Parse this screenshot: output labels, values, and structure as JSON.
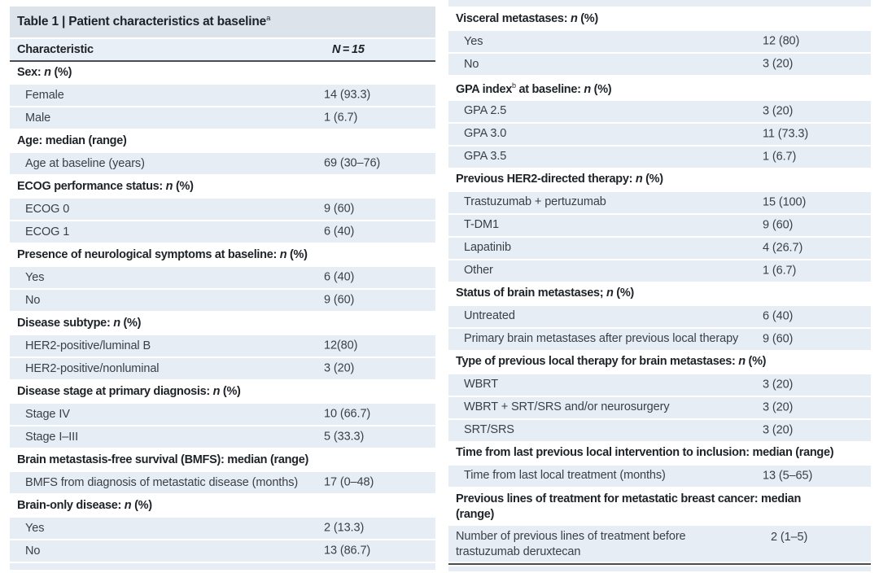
{
  "colors": {
    "title_bg": "#dce3eb",
    "header_bg": "#e9eff6",
    "row_bg": "#e7edf4",
    "rule": "#4a4e53",
    "body_text": "#3a4046",
    "bold_text": "#1f2328",
    "page_bg": "#ffffff"
  },
  "table": {
    "title_html": "Table 1 | Patient characteristics at baseline<sup>a</sup>",
    "header": {
      "characteristic_html": "Characteristic",
      "n_html": "<i>N</i>&#8201;=&#8201;<i>15</i>"
    },
    "left_rows": [
      {
        "type": "section",
        "label_html": "Sex: <i>n</i> (%)"
      },
      {
        "type": "data",
        "label_html": "Female",
        "value": "14 (93.3)",
        "indent": true
      },
      {
        "type": "data",
        "label_html": "Male",
        "value": "1 (6.7)",
        "indent": true
      },
      {
        "type": "section",
        "label_html": "Age: median (range)"
      },
      {
        "type": "data",
        "label_html": "Age at baseline (years)",
        "value": "69 (30–76)",
        "indent": true
      },
      {
        "type": "section",
        "label_html": "ECOG performance status: <i>n</i> (%)"
      },
      {
        "type": "data",
        "label_html": "ECOG 0",
        "value": "9 (60)",
        "indent": true
      },
      {
        "type": "data",
        "label_html": "ECOG 1",
        "value": "6 (40)",
        "indent": true
      },
      {
        "type": "section",
        "label_html": "Presence of neurological symptoms at baseline: <i>n</i> (%)"
      },
      {
        "type": "data",
        "label_html": "Yes",
        "value": "6 (40)",
        "indent": true
      },
      {
        "type": "data",
        "label_html": "No",
        "value": "9 (60)",
        "indent": true
      },
      {
        "type": "section",
        "label_html": "Disease subtype: <i>n</i> (%)"
      },
      {
        "type": "data",
        "label_html": "HER2-positive/luminal B",
        "value": "12(80)",
        "indent": true
      },
      {
        "type": "data",
        "label_html": "HER2-positive/nonluminal",
        "value": "3 (20)",
        "indent": true
      },
      {
        "type": "section",
        "label_html": "Disease stage at primary diagnosis: <i>n</i> (%)"
      },
      {
        "type": "data",
        "label_html": "Stage IV",
        "value": "10 (66.7)",
        "indent": true
      },
      {
        "type": "data",
        "label_html": "Stage I–III",
        "value": "5 (33.3)",
        "indent": true
      },
      {
        "type": "section",
        "label_html": "Brain metastasis-free survival (BMFS): median (range)"
      },
      {
        "type": "data",
        "label_html": "BMFS from diagnosis of metastatic disease (months)",
        "value": "17 (0–48)",
        "indent": true
      },
      {
        "type": "section",
        "label_html": "Brain-only disease: <i>n</i> (%)"
      },
      {
        "type": "data",
        "label_html": "Yes",
        "value": "2 (13.3)",
        "indent": true
      },
      {
        "type": "data",
        "label_html": "No",
        "value": "13 (86.7)",
        "indent": true
      },
      {
        "type": "sliver",
        "height": 8
      }
    ],
    "right_rows": [
      {
        "type": "sliver",
        "height": 8
      },
      {
        "type": "section",
        "label_html": "Visceral metastases: <i>n</i> (%)"
      },
      {
        "type": "data",
        "label_html": "Yes",
        "value": "12 (80)",
        "indent": true
      },
      {
        "type": "data",
        "label_html": "No",
        "value": "3 (20)",
        "indent": true
      },
      {
        "type": "section",
        "label_html": "GPA index<sup>b</sup> at baseline: <i>n</i> (%)"
      },
      {
        "type": "data",
        "label_html": "GPA 2.5",
        "value": "3 (20)",
        "indent": true
      },
      {
        "type": "data",
        "label_html": "GPA 3.0",
        "value": "11 (73.3)",
        "indent": true
      },
      {
        "type": "data",
        "label_html": "GPA 3.5",
        "value": "1 (6.7)",
        "indent": true
      },
      {
        "type": "section",
        "label_html": "Previous HER2-directed therapy: <i>n</i> (%)"
      },
      {
        "type": "data",
        "label_html": "Trastuzumab + pertuzumab",
        "value": "15 (100)",
        "indent": true
      },
      {
        "type": "data",
        "label_html": "T-DM1",
        "value": "9 (60)",
        "indent": true
      },
      {
        "type": "data",
        "label_html": "Lapatinib",
        "value": "4 (26.7)",
        "indent": true
      },
      {
        "type": "data",
        "label_html": "Other",
        "value": "1 (6.7)",
        "indent": true
      },
      {
        "type": "section",
        "label_html": "Status of brain metastases; <i>n</i> (%)"
      },
      {
        "type": "data",
        "label_html": "Untreated",
        "value": "6 (40)",
        "indent": true
      },
      {
        "type": "data",
        "label_html": "Primary brain metastases after previous local therapy",
        "value": "9 (60)",
        "indent": true
      },
      {
        "type": "section",
        "label_html": "Type of previous local therapy for brain metastases: <i>n</i> (%)"
      },
      {
        "type": "data",
        "label_html": "WBRT",
        "value": "3 (20)",
        "indent": true
      },
      {
        "type": "data",
        "label_html": "WBRT + SRT/SRS and/or neurosurgery",
        "value": "3 (20)",
        "indent": true
      },
      {
        "type": "data",
        "label_html": "SRT/SRS",
        "value": "3 (20)",
        "indent": true
      },
      {
        "type": "section",
        "label_html": "Time from last previous local intervention to inclusion: median (range)"
      },
      {
        "type": "data",
        "label_html": "Time from last local treatment (months)",
        "value": "13 (5–65)",
        "indent": true
      },
      {
        "type": "section",
        "label_html": "Previous lines of treatment for metastatic breast cancer: median<br>(range)",
        "multiline": true
      },
      {
        "type": "data",
        "label_html": "Number of previous lines of treatment before<br>trastuzumab deruxtecan",
        "value": "2 (1–5)",
        "indent": false,
        "multiline": true
      },
      {
        "type": "rule"
      },
      {
        "type": "sliver",
        "height": 6
      }
    ]
  }
}
